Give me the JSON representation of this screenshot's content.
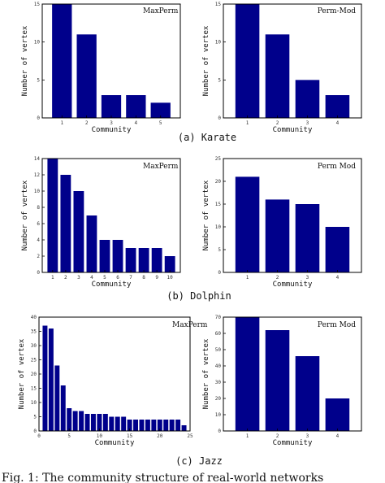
{
  "colors": {
    "bar": "#00008b",
    "axis": "#000000",
    "page": "#ffffff"
  },
  "captions": {
    "a": "(a)  Karate",
    "b": "(b)  Dolphin",
    "c": "(c)  Jazz",
    "figure": "Fig. 1: The community structure of real-world networks"
  },
  "chart_data": [
    {
      "id": "karate-maxperm",
      "type": "bar",
      "legend": "MaxPerm",
      "categories": [
        "1",
        "2",
        "3",
        "4",
        "5"
      ],
      "values": [
        15,
        11,
        3,
        3,
        2
      ],
      "ylim": [
        0,
        15
      ],
      "yticks": [
        0,
        5,
        10,
        15
      ],
      "xlabel": "Community",
      "ylabel": "Number of vertex"
    },
    {
      "id": "karate-permmod",
      "type": "bar",
      "legend": "Perm-Mod",
      "categories": [
        "1",
        "2",
        "3",
        "4"
      ],
      "values": [
        15,
        11,
        5,
        3
      ],
      "ylim": [
        0,
        15
      ],
      "yticks": [
        0,
        5,
        10,
        15
      ],
      "xlabel": "Community",
      "ylabel": "Number of vertex"
    },
    {
      "id": "dolphin-maxperm",
      "type": "bar",
      "legend": "MaxPerm",
      "categories": [
        "1",
        "2",
        "3",
        "4",
        "5",
        "6",
        "7",
        "8",
        "9",
        "10"
      ],
      "values": [
        14,
        12,
        10,
        7,
        4,
        4,
        3,
        3,
        3,
        2
      ],
      "ylim": [
        0,
        14
      ],
      "yticks": [
        0,
        2,
        4,
        6,
        8,
        10,
        12,
        14
      ],
      "xlabel": "Community",
      "ylabel": "Number of vertex"
    },
    {
      "id": "dolphin-permmod",
      "type": "bar",
      "legend": "Perm Mod",
      "categories": [
        "1",
        "2",
        "3",
        "4"
      ],
      "values": [
        21,
        16,
        15,
        10
      ],
      "ylim": [
        0,
        25
      ],
      "yticks": [
        0,
        5,
        10,
        15,
        20,
        25
      ],
      "xlabel": "Community",
      "ylabel": "Number of vertex"
    },
    {
      "id": "jazz-maxperm",
      "type": "bar",
      "legend": "MaxPerm",
      "x": [
        1,
        2,
        3,
        4,
        5,
        6,
        7,
        8,
        9,
        10,
        11,
        12,
        13,
        14,
        15,
        16,
        17,
        18,
        19,
        20,
        21,
        22,
        23,
        24
      ],
      "values": [
        37,
        36,
        23,
        16,
        8,
        7,
        7,
        6,
        6,
        6,
        6,
        5,
        5,
        5,
        4,
        4,
        4,
        4,
        4,
        4,
        4,
        4,
        4,
        2
      ],
      "xlim": [
        0,
        25
      ],
      "xticks": [
        0,
        5,
        10,
        15,
        20,
        25
      ],
      "ylim": [
        0,
        40
      ],
      "yticks": [
        0,
        5,
        10,
        15,
        20,
        25,
        30,
        35,
        40
      ],
      "xlabel": "Community",
      "ylabel": "Number of vertex"
    },
    {
      "id": "jazz-permmod",
      "type": "bar",
      "legend": "Perm Mod",
      "categories": [
        "1",
        "2",
        "3",
        "4"
      ],
      "values": [
        70,
        62,
        46,
        20
      ],
      "ylim": [
        0,
        70
      ],
      "yticks": [
        0,
        10,
        20,
        30,
        40,
        50,
        60,
        70
      ],
      "xlabel": "Community",
      "ylabel": "Number of vertex"
    }
  ]
}
